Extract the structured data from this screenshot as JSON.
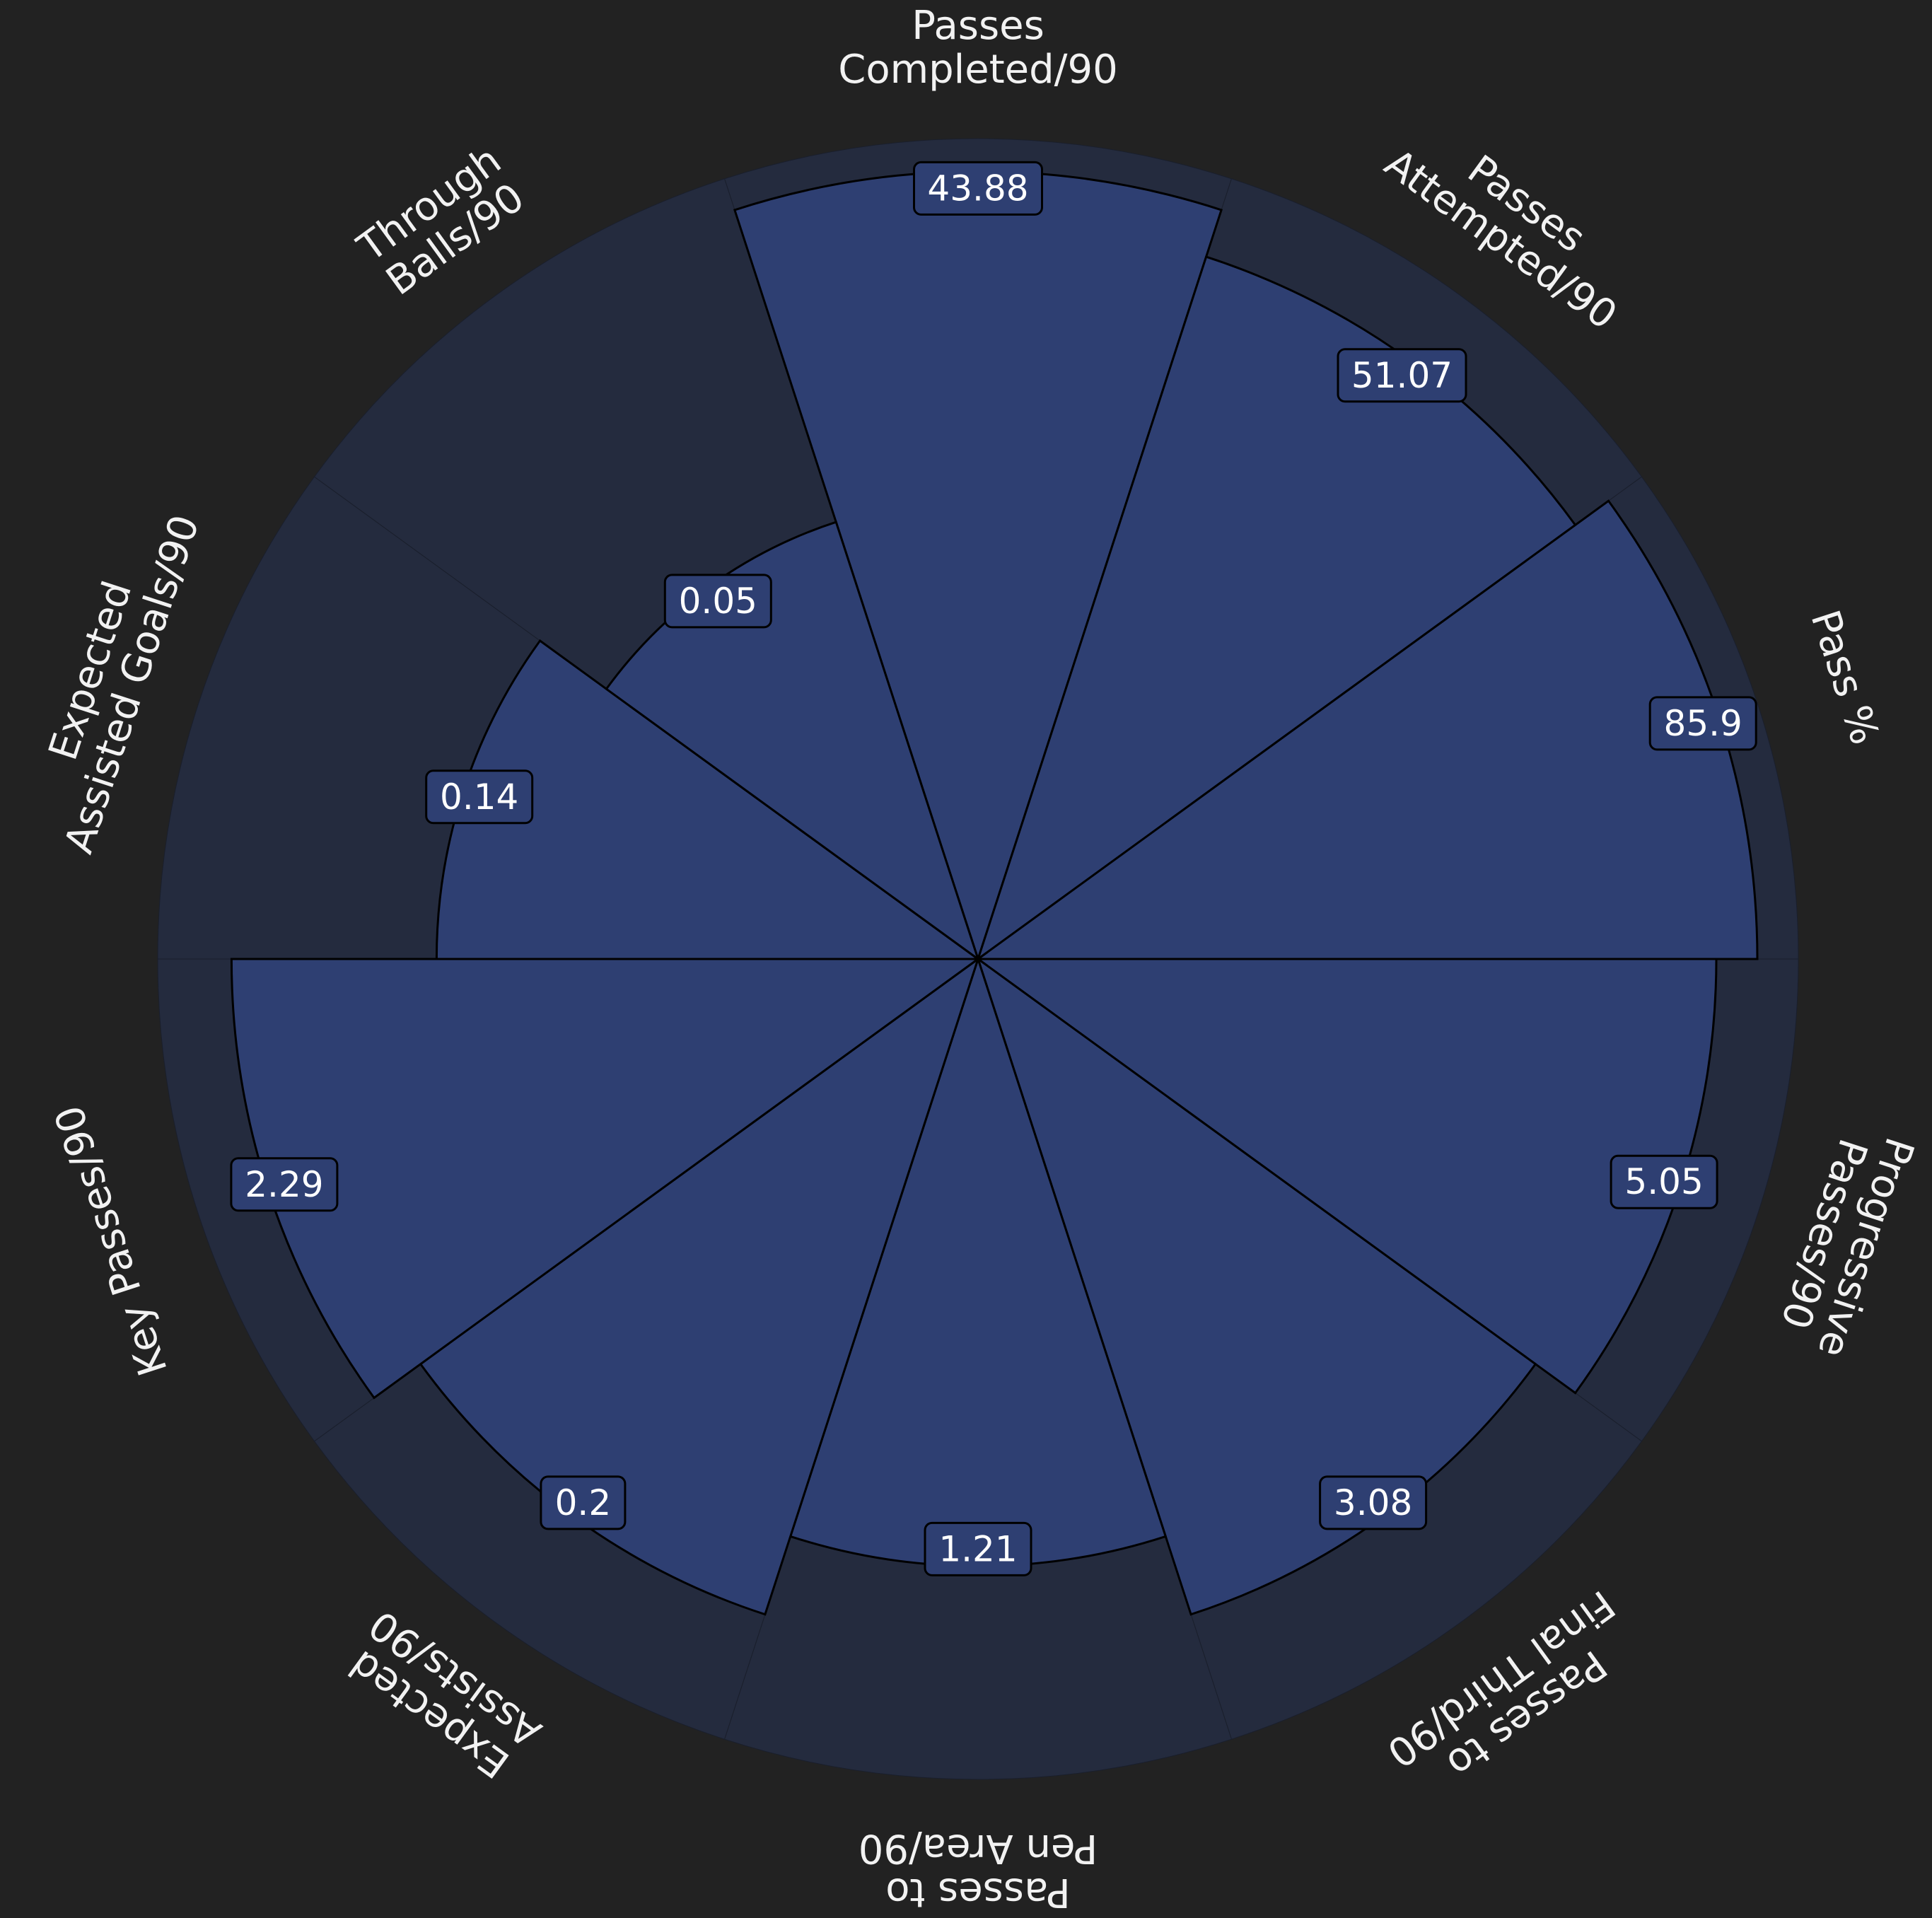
{
  "chart_data": {
    "type": "pizza",
    "colors": {
      "background": "#222222",
      "slice_background": "#242b3e",
      "slice_fill": "#2e3f72",
      "edge": "#000000",
      "label_text": "#f2f2f2",
      "value_text": "#ffffff"
    },
    "slices": [
      {
        "param": [
          "Passes",
          "Completed/90"
        ],
        "value": "43.88",
        "fill_fraction": 0.96
      },
      {
        "param": [
          "Passes",
          "Attempted/90"
        ],
        "value": "51.07",
        "fill_fraction": 0.9
      },
      {
        "param": [
          "Pass %"
        ],
        "value": "85.9",
        "fill_fraction": 0.95
      },
      {
        "param": [
          "Progressive",
          "Passes/90"
        ],
        "value": "5.05",
        "fill_fraction": 0.9
      },
      {
        "param": [
          "Passes to",
          "Final Third/90"
        ],
        "value": "3.08",
        "fill_fraction": 0.84
      },
      {
        "param": [
          "Passes to",
          "Pen Area/90"
        ],
        "value": "1.21",
        "fill_fraction": 0.74
      },
      {
        "param": [
          "Expected",
          "Assists/90"
        ],
        "value": "0.2",
        "fill_fraction": 0.84
      },
      {
        "param": [
          "Key Passes/90"
        ],
        "value": "2.29",
        "fill_fraction": 0.91
      },
      {
        "param": [
          "Expected",
          "Assisted Goals/90"
        ],
        "value": "0.14",
        "fill_fraction": 0.66
      },
      {
        "param": [
          "Through",
          "Balls/90"
        ],
        "value": "0.05",
        "fill_fraction": 0.56
      }
    ]
  }
}
